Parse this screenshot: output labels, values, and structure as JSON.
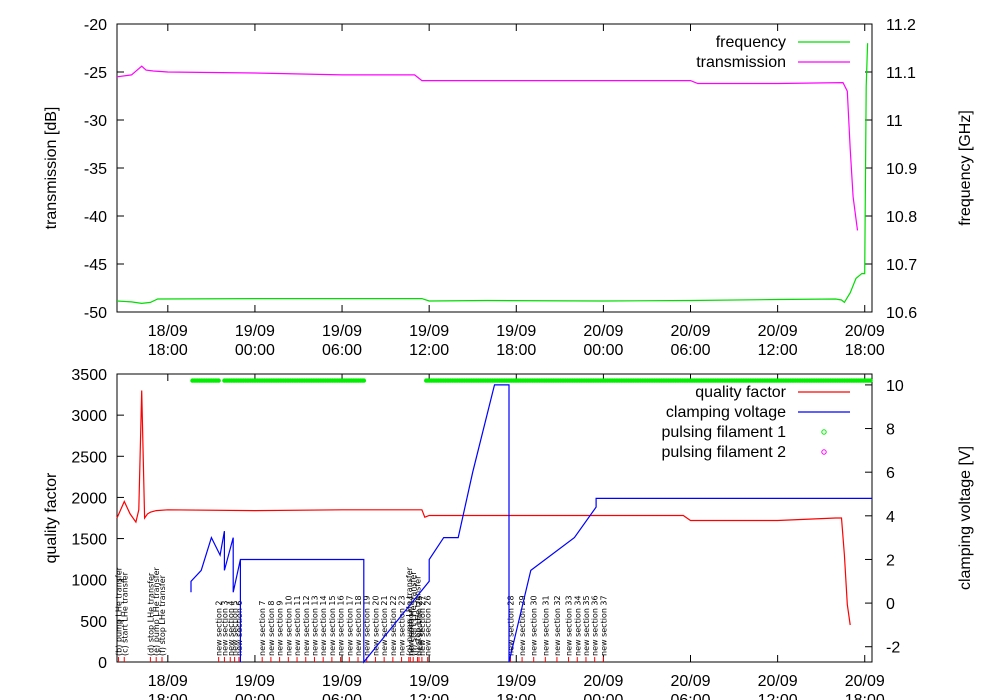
{
  "chart_data": [
    {
      "type": "line",
      "ylabel": "transmission [dB]",
      "y2label": "frequency [GHz]",
      "ylim": [
        -50,
        -20
      ],
      "y2lim": [
        10.6,
        11.2
      ],
      "yticks": [
        -50,
        -45,
        -40,
        -35,
        -30,
        -25,
        -20
      ],
      "y2ticks": [
        10.6,
        10.7,
        10.8,
        10.9,
        11,
        11.1,
        11.2
      ],
      "xrange_hours": [
        14.5,
        66.5
      ],
      "xticks": [
        {
          "t": 18,
          "day": "18/09",
          "time": "18:00"
        },
        {
          "t": 24,
          "day": "19/09",
          "time": "00:00"
        },
        {
          "t": 30,
          "day": "19/09",
          "time": "06:00"
        },
        {
          "t": 36,
          "day": "19/09",
          "time": "12:00"
        },
        {
          "t": 42,
          "day": "19/09",
          "time": "18:00"
        },
        {
          "t": 48,
          "day": "20/09",
          "time": "00:00"
        },
        {
          "t": 54,
          "day": "20/09",
          "time": "06:00"
        },
        {
          "t": 60,
          "day": "20/09",
          "time": "12:00"
        },
        {
          "t": 66,
          "day": "20/09",
          "time": "18:00"
        }
      ],
      "legend_position": "top-right",
      "series": [
        {
          "name": "frequency",
          "axis": "y2",
          "color": "#00dd00",
          "x": [
            14.5,
            15.5,
            16.2,
            16.8,
            17.3,
            25,
            35.5,
            36,
            40,
            48,
            54,
            60,
            64,
            64.4,
            64.6,
            64.8,
            65,
            65.4,
            65.8,
            66,
            66.1,
            66.2
          ],
          "y": [
            10.623,
            10.621,
            10.618,
            10.62,
            10.627,
            10.628,
            10.628,
            10.623,
            10.624,
            10.623,
            10.624,
            10.626,
            10.627,
            10.625,
            10.62,
            10.63,
            10.64,
            10.67,
            10.68,
            10.68,
            11.07,
            11.16
          ]
        },
        {
          "name": "transmission",
          "axis": "y",
          "color": "#ff00ff",
          "x": [
            14.5,
            15.5,
            16.2,
            16.5,
            17,
            18,
            24,
            30,
            35,
            35.5,
            36,
            40,
            48,
            54,
            54.5,
            60,
            64.5,
            64.8,
            65,
            65.2,
            65.5
          ],
          "y": [
            -25.5,
            -25.3,
            -24.4,
            -24.8,
            -24.9,
            -25.0,
            -25.1,
            -25.3,
            -25.3,
            -25.9,
            -25.9,
            -25.9,
            -25.9,
            -25.9,
            -26.2,
            -26.2,
            -26.1,
            -27,
            -33,
            -38,
            -41.5
          ]
        }
      ]
    },
    {
      "type": "line",
      "ylabel": "quality factor",
      "y2label": "clamping voltage [V]",
      "ylim": [
        0,
        3500
      ],
      "y2lim": [
        -2.7,
        10.5
      ],
      "yticks": [
        0,
        500,
        1000,
        1500,
        2000,
        2500,
        3000,
        3500
      ],
      "y2ticks": [
        -2,
        0,
        2,
        4,
        6,
        8,
        10
      ],
      "xrange_hours": [
        14.5,
        66.5
      ],
      "xticks": [
        {
          "t": 18,
          "day": "18/09",
          "time": "18:00"
        },
        {
          "t": 24,
          "day": "19/09",
          "time": "00:00"
        },
        {
          "t": 30,
          "day": "19/09",
          "time": "06:00"
        },
        {
          "t": 36,
          "day": "19/09",
          "time": "12:00"
        },
        {
          "t": 42,
          "day": "19/09",
          "time": "18:00"
        },
        {
          "t": 48,
          "day": "20/09",
          "time": "00:00"
        },
        {
          "t": 54,
          "day": "20/09",
          "time": "06:00"
        },
        {
          "t": 60,
          "day": "20/09",
          "time": "12:00"
        },
        {
          "t": 66,
          "day": "20/09",
          "time": "18:00"
        }
      ],
      "legend_position": "top-right",
      "series": [
        {
          "name": "quality factor",
          "axis": "y",
          "color": "#ff0000",
          "x": [
            14.5,
            15,
            15.4,
            15.8,
            16.0,
            16.2,
            16.4,
            16.6,
            16.8,
            17.2,
            18,
            24,
            30,
            35.5,
            35.7,
            36,
            40,
            48,
            53.5,
            54,
            60,
            64,
            64.4,
            64.6,
            64.8,
            65
          ],
          "y": [
            1750,
            1950,
            1800,
            1700,
            1850,
            3300,
            1750,
            1800,
            1820,
            1840,
            1850,
            1840,
            1850,
            1850,
            1760,
            1780,
            1780,
            1780,
            1780,
            1720,
            1720,
            1750,
            1750,
            1300,
            700,
            450
          ]
        },
        {
          "name": "clamping voltage",
          "axis": "y2",
          "color": "#0000ff",
          "x": [
            19.6,
            19.6,
            20.3,
            21,
            21.6,
            21.9,
            21.9,
            22.5,
            22.5,
            23,
            23,
            23,
            31.5,
            31.5,
            36,
            36,
            37,
            38,
            39,
            40.5,
            41,
            41.5,
            41.5,
            43,
            46,
            47.5,
            47.5,
            66.5
          ],
          "y": [
            0.5,
            1.0,
            1.5,
            3.0,
            2.2,
            3.3,
            1.5,
            3.0,
            0.5,
            2.0,
            -2.7,
            2.0,
            2.0,
            -2.7,
            1.0,
            2.0,
            3.0,
            3.0,
            6.0,
            10.0,
            10.0,
            10.0,
            -2.7,
            1.5,
            3.0,
            4.4,
            4.8,
            4.8
          ]
        },
        {
          "name": "pulsing filament 1",
          "axis": "y",
          "color": "#00ee00",
          "marker": "o",
          "segments": [
            [
              19.7,
              21.6
            ],
            [
              21.9,
              31.6
            ],
            [
              35.8,
              66.5
            ]
          ],
          "y": 3420
        },
        {
          "name": "pulsing filament 2",
          "axis": "y",
          "color": "#ff00ff",
          "marker": "o",
          "segments": []
        }
      ],
      "annotations": [
        {
          "t": 14.6,
          "text": "(b) pump LHe transfer"
        },
        {
          "t": 15.0,
          "text": "(c) start LHe transfer"
        },
        {
          "t": 16.8,
          "text": "(d) stop LHe transfer"
        },
        {
          "t": 17.2,
          "text": "(e) pump LHe transfer"
        },
        {
          "t": 17.6,
          "text": "(f) stop LHe transfer"
        },
        {
          "t": 21.5,
          "text": "new section 2"
        },
        {
          "t": 21.9,
          "text": "new section 3"
        },
        {
          "t": 22.3,
          "text": "new section 4"
        },
        {
          "t": 22.6,
          "text": "new section 5"
        },
        {
          "t": 22.9,
          "text": "new section 6"
        },
        {
          "t": 24.5,
          "text": "new section 7"
        },
        {
          "t": 25.1,
          "text": "new section 8"
        },
        {
          "t": 25.7,
          "text": "new section 9"
        },
        {
          "t": 26.3,
          "text": "new section 10"
        },
        {
          "t": 26.9,
          "text": "new section 11"
        },
        {
          "t": 27.5,
          "text": "new section 12"
        },
        {
          "t": 28.1,
          "text": "new section 13"
        },
        {
          "t": 28.7,
          "text": "new section 14"
        },
        {
          "t": 29.3,
          "text": "new section 15"
        },
        {
          "t": 29.9,
          "text": "new section 16"
        },
        {
          "t": 30.5,
          "text": "new section 17"
        },
        {
          "t": 31.1,
          "text": "new section 18"
        },
        {
          "t": 31.7,
          "text": "new section 19"
        },
        {
          "t": 32.3,
          "text": "new section 20"
        },
        {
          "t": 32.9,
          "text": "new section 21"
        },
        {
          "t": 33.5,
          "text": "new section 22"
        },
        {
          "t": 34.1,
          "text": "new section 23"
        },
        {
          "t": 34.7,
          "text": "new section 24"
        },
        {
          "t": 35.3,
          "text": "new section 25"
        },
        {
          "t": 35.9,
          "text": "new section 26"
        },
        {
          "t": 34.6,
          "text": "(g) pump LHe transfer"
        },
        {
          "t": 34.9,
          "text": "(h) start LHe transfer"
        },
        {
          "t": 35.2,
          "text": "(i) stop LHe transfer"
        },
        {
          "t": 35.5,
          "text": "new section 27"
        },
        {
          "t": 41.6,
          "text": "new section 28"
        },
        {
          "t": 42.4,
          "text": "new section 29"
        },
        {
          "t": 43.2,
          "text": "new section 30"
        },
        {
          "t": 44.0,
          "text": "new section 31"
        },
        {
          "t": 44.8,
          "text": "new section 32"
        },
        {
          "t": 45.6,
          "text": "new section 33"
        },
        {
          "t": 46.2,
          "text": "new section 34"
        },
        {
          "t": 46.8,
          "text": "new section 35"
        },
        {
          "t": 47.4,
          "text": "new section 36"
        },
        {
          "t": 48.0,
          "text": "new section 37"
        }
      ]
    }
  ]
}
